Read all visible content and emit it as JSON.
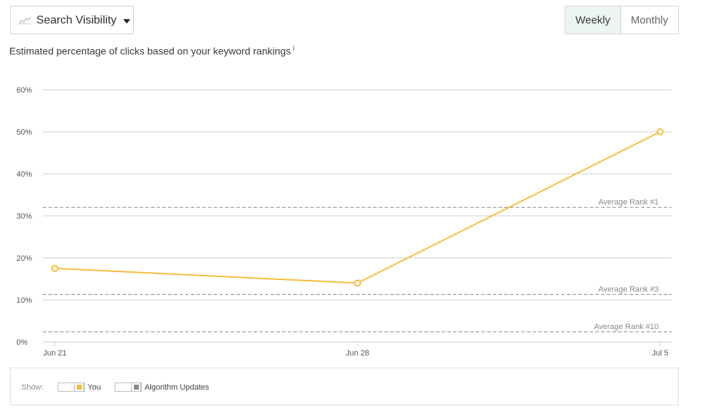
{
  "toolbar": {
    "metric_label": "Search Visibility",
    "metric_icon": "line-chart-icon",
    "period_options": [
      "Weekly",
      "Monthly"
    ],
    "selected_period": "Weekly"
  },
  "subtitle": "Estimated percentage of clicks based on your keyword rankings",
  "info_marker": "i",
  "chart_data": {
    "type": "line",
    "title": "",
    "xlabel": "",
    "ylabel": "",
    "categories": [
      "Jun 21",
      "Jun 28",
      "Jul 5"
    ],
    "series": [
      {
        "name": "You",
        "values": [
          17.5,
          14,
          50
        ],
        "color": "#f6bd3a"
      }
    ],
    "ylim": [
      0,
      60
    ],
    "yticks": [
      0,
      10,
      20,
      30,
      40,
      50,
      60
    ],
    "ytick_labels": [
      "0%",
      "10%",
      "20%",
      "30%",
      "40%",
      "50%",
      "60%"
    ],
    "grid": true,
    "reference_lines": [
      {
        "label": "Average Rank #1",
        "value": 32
      },
      {
        "label": "Average Rank #3",
        "value": 11.3
      },
      {
        "label": "Average Rank #10",
        "value": 2.4
      }
    ]
  },
  "legend": {
    "show_label": "Show:",
    "items": [
      {
        "label": "You",
        "color": "#f6bd3a"
      },
      {
        "label": "Algorithm Updates",
        "color": "#888888"
      }
    ]
  }
}
